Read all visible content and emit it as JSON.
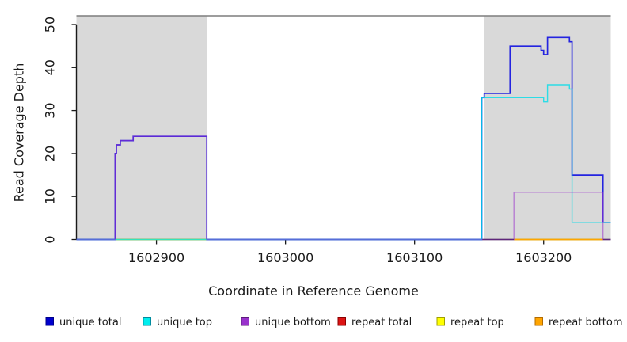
{
  "chart_data": {
    "type": "line",
    "title": "",
    "xlabel": "Coordinate in Reference Genome",
    "ylabel": "Read Coverage Depth",
    "xlim": [
      1602838,
      1603252
    ],
    "ylim": [
      0,
      52
    ],
    "x_ticks": [
      1602900,
      1603000,
      1603100,
      1603200
    ],
    "y_ticks": [
      0,
      10,
      20,
      30,
      40,
      50
    ],
    "grid": false,
    "legend_position": "bottom",
    "background_color": "#ffffff",
    "axis_color": "#1a1a1a",
    "shaded_regions": {
      "fill_color": "#d9d9d9",
      "top_border_color": "#7d7d7d",
      "x_ranges": [
        [
          1602838,
          1602939
        ],
        [
          1603154,
          1603252
        ]
      ]
    },
    "series": [
      {
        "name": "unique total",
        "color": "#2424e0",
        "legend_fill": "#0000cd",
        "legend_edge": "#00008b",
        "line_width": 1.7,
        "opacity": 1,
        "segments": [
          [
            [
              1602838,
              0
            ],
            [
              1602868,
              0
            ],
            [
              1602868,
              20
            ],
            [
              1602869,
              20
            ],
            [
              1602869,
              22
            ],
            [
              1602872,
              22
            ],
            [
              1602872,
              23
            ],
            [
              1602882,
              23
            ],
            [
              1602882,
              24
            ],
            [
              1602939,
              24
            ],
            [
              1602939,
              0
            ],
            [
              1603152,
              0
            ],
            [
              1603152,
              33
            ],
            [
              1603154,
              33
            ],
            [
              1603154,
              34
            ],
            [
              1603174,
              34
            ],
            [
              1603174,
              45
            ],
            [
              1603198,
              45
            ],
            [
              1603198,
              44
            ],
            [
              1603200,
              44
            ],
            [
              1603200,
              43
            ],
            [
              1603203,
              43
            ],
            [
              1603203,
              47
            ],
            [
              1603220,
              47
            ],
            [
              1603220,
              46
            ],
            [
              1603222,
              46
            ],
            [
              1603222,
              15
            ],
            [
              1603246,
              15
            ],
            [
              1603246,
              4
            ],
            [
              1603252,
              4
            ]
          ]
        ]
      },
      {
        "name": "unique top",
        "color": "#00dce8",
        "legend_fill": "#00eeee",
        "legend_edge": "#008b9e",
        "line_width": 1.4,
        "opacity": 0.8,
        "segments": [
          [
            [
              1602838,
              0
            ],
            [
              1603152,
              0
            ],
            [
              1603152,
              33
            ],
            [
              1603200,
              33
            ],
            [
              1603200,
              32
            ],
            [
              1603203,
              32
            ],
            [
              1603203,
              36
            ],
            [
              1603220,
              36
            ],
            [
              1603220,
              35
            ],
            [
              1603222,
              35
            ],
            [
              1603222,
              4
            ],
            [
              1603252,
              4
            ]
          ]
        ]
      },
      {
        "name": "unique bottom",
        "color": "#9932cc",
        "legend_fill": "#9932cc",
        "legend_edge": "#5c1d7a",
        "line_width": 1.4,
        "opacity": 0.55,
        "segments": [
          [
            [
              1602838,
              0
            ],
            [
              1602868,
              0
            ],
            [
              1602868,
              20
            ],
            [
              1602869,
              20
            ],
            [
              1602869,
              22
            ],
            [
              1602872,
              22
            ],
            [
              1602872,
              23
            ],
            [
              1602882,
              23
            ],
            [
              1602882,
              24
            ],
            [
              1602939,
              24
            ],
            [
              1602939,
              0
            ],
            [
              1603177,
              0
            ],
            [
              1603177,
              11
            ],
            [
              1603246,
              11
            ],
            [
              1603246,
              0
            ],
            [
              1603252,
              0
            ]
          ]
        ]
      },
      {
        "name": "repeat total",
        "color": "#dc1414",
        "legend_fill": "#dc1414",
        "legend_edge": "#8b0000",
        "line_width": 1.3,
        "opacity": 1,
        "segments": [
          [
            [
              1602868,
              0
            ],
            [
              1602939,
              0
            ]
          ],
          [
            [
              1603177,
              0
            ],
            [
              1603246,
              0
            ]
          ]
        ]
      },
      {
        "name": "repeat top",
        "color": "#ffff00",
        "legend_fill": "#ffff00",
        "legend_edge": "#a0a000",
        "line_width": 1.4,
        "opacity": 1,
        "segments": [
          [
            [
              1602868,
              0
            ],
            [
              1602939,
              0
            ]
          ],
          [
            [
              1603177,
              0
            ],
            [
              1603246,
              0
            ]
          ]
        ]
      },
      {
        "name": "repeat bottom",
        "color": "#ffa500",
        "legend_fill": "#ffa500",
        "legend_edge": "#b36b00",
        "line_width": 1.5,
        "opacity": 1,
        "segments": [
          [
            [
              1603177,
              0
            ],
            [
              1603246,
              0
            ]
          ]
        ]
      }
    ]
  }
}
